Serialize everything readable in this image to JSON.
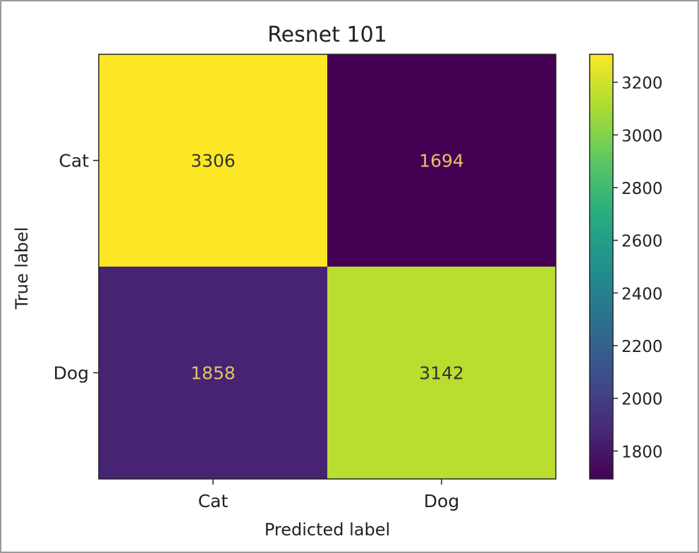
{
  "chart_data": {
    "type": "heatmap",
    "title": "Resnet 101",
    "xlabel": "Predicted label",
    "ylabel": "True label",
    "x_categories": [
      "Cat",
      "Dog"
    ],
    "y_categories": [
      "Cat",
      "Dog"
    ],
    "values": [
      [
        3306,
        1694
      ],
      [
        1858,
        3142
      ]
    ],
    "colormap": "viridis",
    "colorbar": {
      "range": [
        1694,
        3306
      ],
      "ticks": [
        1800,
        2000,
        2200,
        2400,
        2600,
        2800,
        3000,
        3200
      ]
    },
    "grid": false,
    "legend": "colorbar-right",
    "text_colors": {
      "dark_cell": "#e4c068",
      "light_cell": "#333333"
    }
  }
}
